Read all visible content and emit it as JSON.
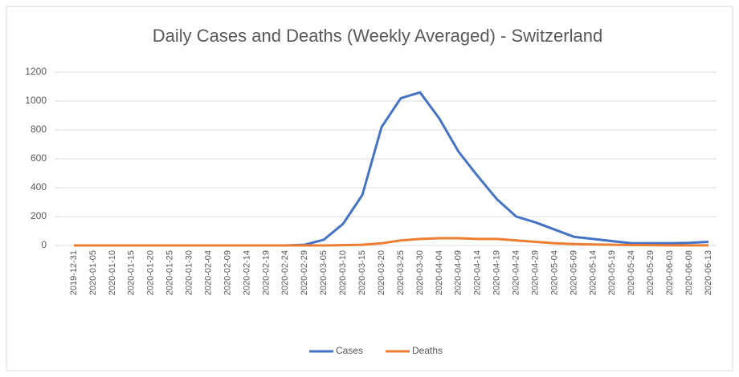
{
  "chart_data": {
    "type": "line",
    "title": "Daily Cases and Deaths (Weekly Averaged) - Switzerland",
    "categories": [
      "2019-12-31",
      "2020-01-05",
      "2020-01-10",
      "2020-01-15",
      "2020-01-20",
      "2020-01-25",
      "2020-01-30",
      "2020-02-04",
      "2020-02-09",
      "2020-02-14",
      "2020-02-19",
      "2020-02-24",
      "2020-02-29",
      "2020-03-05",
      "2020-03-10",
      "2020-03-15",
      "2020-03-20",
      "2020-03-25",
      "2020-03-30",
      "2020-04-04",
      "2020-04-09",
      "2020-04-14",
      "2020-04-19",
      "2020-04-24",
      "2020-04-29",
      "2020-05-04",
      "2020-05-09",
      "2020-05-14",
      "2020-05-19",
      "2020-05-24",
      "2020-05-29",
      "2020-06-03",
      "2020-06-08",
      "2020-06-13"
    ],
    "series": [
      {
        "name": "Cases",
        "color": "#4472c4",
        "values": [
          0,
          0,
          0,
          0,
          0,
          0,
          0,
          0,
          0,
          0,
          0,
          0,
          5,
          40,
          150,
          350,
          820,
          1020,
          1060,
          880,
          650,
          480,
          320,
          200,
          160,
          110,
          60,
          45,
          30,
          15,
          15,
          15,
          18,
          25
        ]
      },
      {
        "name": "Deaths",
        "color": "#ed7d31",
        "values": [
          0,
          0,
          0,
          0,
          0,
          0,
          0,
          0,
          0,
          0,
          0,
          0,
          0,
          0,
          2,
          5,
          15,
          35,
          45,
          50,
          50,
          45,
          45,
          35,
          25,
          15,
          10,
          7,
          5,
          3,
          2,
          1,
          1,
          1
        ]
      }
    ],
    "ylim": [
      0,
      1200
    ],
    "yticks": [
      0,
      200,
      400,
      600,
      800,
      1000,
      1200
    ],
    "grid": true,
    "legend": "bottom"
  }
}
